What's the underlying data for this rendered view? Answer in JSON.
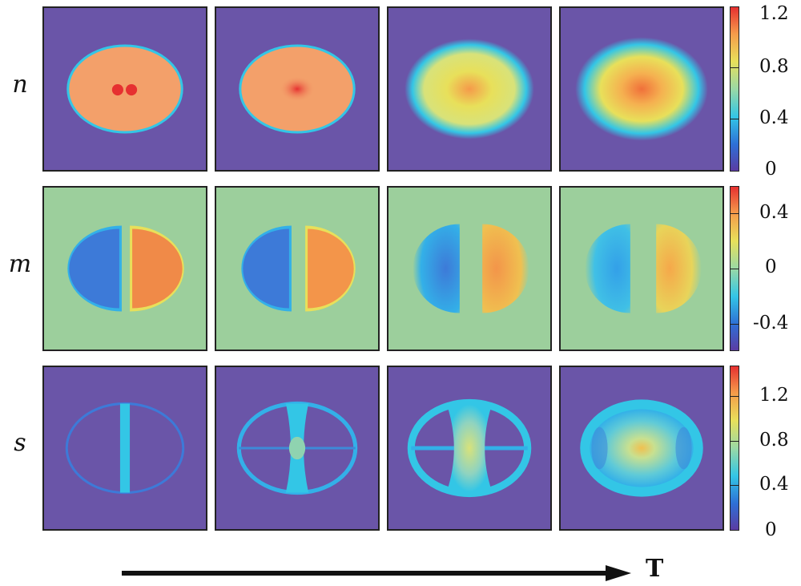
{
  "rows": [
    {
      "label": "n",
      "colorbar_ticks": [
        "1.2",
        "0.8",
        "0.4",
        "0"
      ]
    },
    {
      "label": "m",
      "colorbar_ticks": [
        "0.4",
        "0",
        "-0.4"
      ]
    },
    {
      "label": "s",
      "colorbar_ticks": [
        "1.2",
        "0.8",
        "0.4",
        "0"
      ]
    }
  ],
  "axis": {
    "label": "T"
  },
  "colormap": [
    "#5b3ca3",
    "#2e6fd6",
    "#33c6e6",
    "#9ad9a5",
    "#e8e05a",
    "#f59a4a",
    "#e63030"
  ],
  "background_colors": {
    "n": "#6a55a8",
    "m": "#9ccf9c",
    "s": "#6a55a8"
  }
}
